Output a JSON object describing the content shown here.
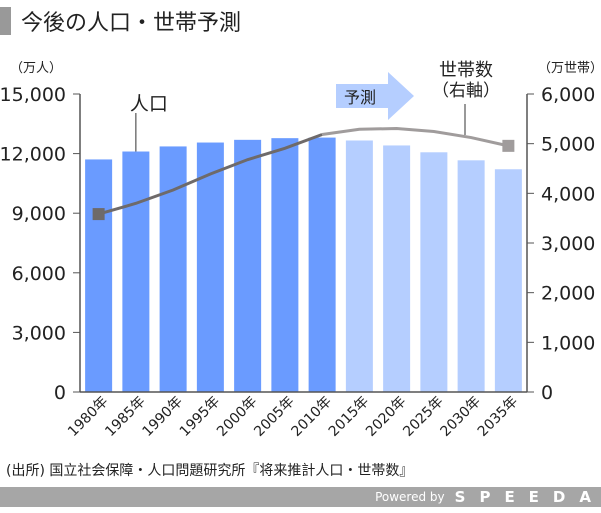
{
  "title": "今後の人口・世帯予測",
  "source": "(出所) 国立社会保障・人口問題研究所『将来推計人口・世帯数』",
  "footer": {
    "powered": "Powered by",
    "brand": "SPEEDA"
  },
  "chart_data": {
    "type": "bar+line",
    "categories": [
      "1980年",
      "1985年",
      "1990年",
      "1995年",
      "2000年",
      "2005年",
      "2010年",
      "2015年",
      "2020年",
      "2025年",
      "2030年",
      "2035年"
    ],
    "forecast_start_index": 7,
    "series": [
      {
        "name": "人口",
        "axis": "left",
        "type": "bar",
        "values": [
          11706,
          12105,
          12361,
          12557,
          12693,
          12777,
          12806,
          12660,
          12410,
          12066,
          11662,
          11212
        ]
      },
      {
        "name": "世帯数（右軸）",
        "axis": "right",
        "type": "line",
        "values": [
          3582,
          3798,
          4067,
          4390,
          4678,
          4906,
          5184,
          5290,
          5305,
          5244,
          5123,
          4956
        ]
      }
    ],
    "left_axis": {
      "unit": "（万人）",
      "ylim": [
        0,
        15000
      ],
      "ticks": [
        "0",
        "3,000",
        "6,000",
        "9,000",
        "12,000",
        "15,000"
      ]
    },
    "right_axis": {
      "unit": "（万世帯）",
      "ylim": [
        0,
        6000
      ],
      "ticks": [
        "0",
        "1,000",
        "2,000",
        "3,000",
        "4,000",
        "5,000",
        "6,000"
      ]
    },
    "annotations": {
      "population": "人口",
      "households_1": "世帯数",
      "households_2": "（右軸）",
      "forecast": "予測"
    },
    "colors": {
      "actual": "#6a9bff",
      "forecast": "#b5ceff",
      "line_actual": "#6e6a6a",
      "line_forecast": "#a09c9c",
      "axis": "#555555"
    }
  }
}
